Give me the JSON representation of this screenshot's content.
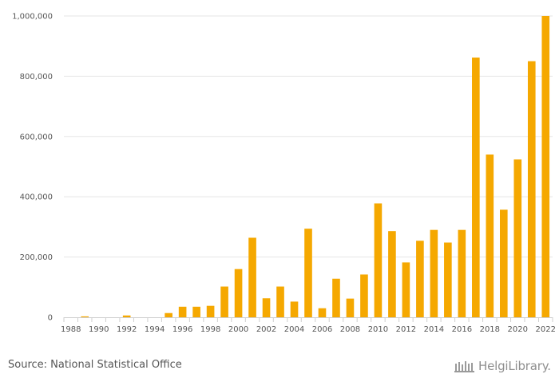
{
  "chart_data": {
    "type": "bar",
    "categories": [
      "1988",
      "1989",
      "1990",
      "1991",
      "1992",
      "1993",
      "1994",
      "1995",
      "1996",
      "1997",
      "1998",
      "1999",
      "2000",
      "2001",
      "2002",
      "2003",
      "2004",
      "2005",
      "2006",
      "2007",
      "2008",
      "2009",
      "2010",
      "2011",
      "2012",
      "2013",
      "2014",
      "2015",
      "2016",
      "2017",
      "2018",
      "2019",
      "2020",
      "2021",
      "2022"
    ],
    "values": [
      0,
      3000,
      0,
      0,
      6000,
      0,
      0,
      14000,
      35000,
      35000,
      38000,
      102000,
      160000,
      264000,
      63000,
      102000,
      52000,
      294000,
      30000,
      128000,
      62000,
      142000,
      378000,
      286000,
      182000,
      254000,
      290000,
      248000,
      290000,
      862000,
      540000,
      357000,
      524000,
      850000,
      1000000
    ],
    "x_tick_labels": [
      "1988",
      "1990",
      "1992",
      "1994",
      "1996",
      "1998",
      "2000",
      "2002",
      "2004",
      "2006",
      "2008",
      "2010",
      "2012",
      "2014",
      "2016",
      "2018",
      "2020",
      "2022"
    ],
    "y_ticks": [
      0,
      200000,
      400000,
      600000,
      800000,
      1000000
    ],
    "y_tick_labels": [
      "0",
      "200,000",
      "400,000",
      "600,000",
      "800,000",
      "1,000,000"
    ],
    "ylim": [
      0,
      1000000
    ],
    "grid": true,
    "bar_color": "#f5a800",
    "title": "",
    "xlabel": "",
    "ylabel": ""
  },
  "footer": {
    "source": "Source: National Statistical Office",
    "logo_text": "HelgiLibrary."
  },
  "logo_icon": "library-building-icon"
}
